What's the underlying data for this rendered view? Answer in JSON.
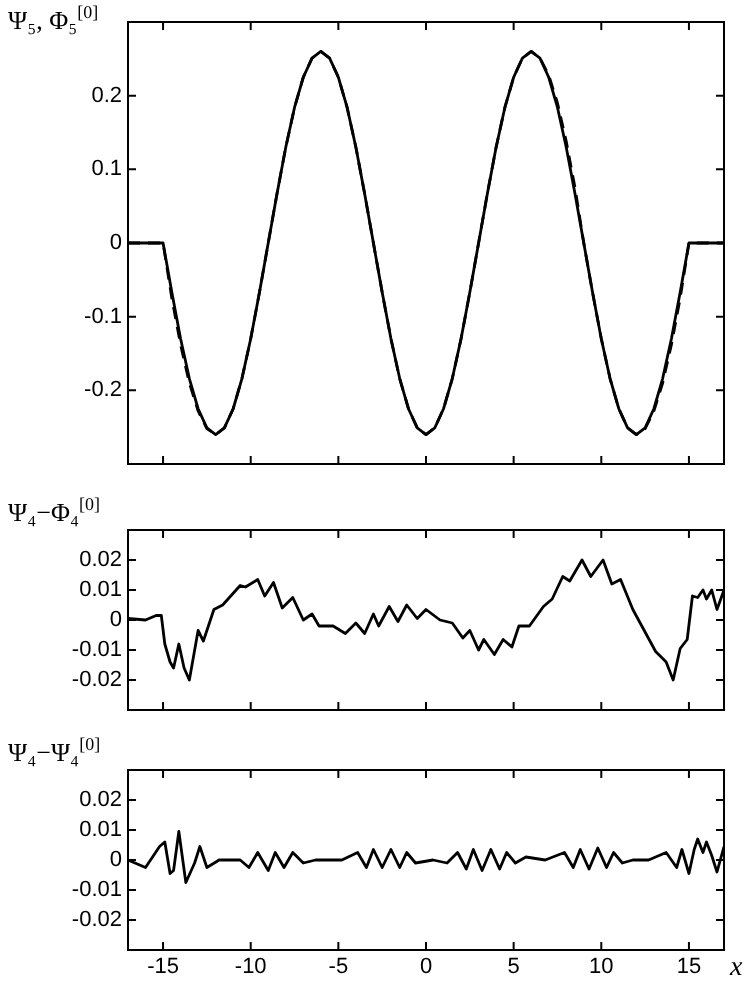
{
  "chart_data": [
    {
      "type": "line",
      "ylabel": "Ψ₅, Φ₅$^{[0]}$",
      "xlim": [
        -17,
        17
      ],
      "xticks": [
        -15,
        -10,
        -5,
        0,
        5,
        10,
        15
      ],
      "ylim": [
        -0.3,
        0.3
      ],
      "yticks": [
        -0.2,
        -0.1,
        0,
        0.1,
        0.2
      ],
      "tick_labels": "y",
      "grid": false,
      "legend": false,
      "marker": "none",
      "series": [
        {
          "color": "#000000",
          "line_style": "solid",
          "x": [
            -17,
            -16,
            -15,
            -14.5,
            -14,
            -13.5,
            -13,
            -12.5,
            -12,
            -11.5,
            -11,
            -10.5,
            -10,
            -9.5,
            -9,
            -8.5,
            -8,
            -7.5,
            -7,
            -6.5,
            -6,
            -5.5,
            -5,
            -4.5,
            -4,
            -3.5,
            -3,
            -2.5,
            -2,
            -1.5,
            -1,
            -0.5,
            0,
            0.5,
            1,
            1.5,
            2,
            2.5,
            3,
            3.5,
            4,
            4.5,
            5,
            5.5,
            6,
            6.5,
            7,
            7.5,
            8,
            8.5,
            9,
            9.5,
            10,
            10.5,
            11,
            11.5,
            12,
            12.5,
            13,
            13.5,
            14,
            14.5,
            15,
            16,
            17
          ],
          "values": [
            0,
            0,
            0,
            -0.067,
            -0.13,
            -0.184,
            -0.225,
            -0.251,
            -0.26,
            -0.251,
            -0.225,
            -0.184,
            -0.13,
            -0.067,
            0,
            0.067,
            0.13,
            0.184,
            0.225,
            0.251,
            0.26,
            0.251,
            0.225,
            0.184,
            0.13,
            0.067,
            0,
            -0.067,
            -0.13,
            -0.184,
            -0.225,
            -0.251,
            -0.26,
            -0.251,
            -0.225,
            -0.184,
            -0.13,
            -0.067,
            0,
            0.067,
            0.13,
            0.184,
            0.225,
            0.251,
            0.26,
            0.251,
            0.225,
            0.184,
            0.13,
            0.067,
            0,
            -0.067,
            -0.13,
            -0.184,
            -0.225,
            -0.251,
            -0.26,
            -0.251,
            -0.225,
            -0.184,
            -0.13,
            -0.067,
            0,
            0,
            0
          ]
        },
        {
          "color": "#000000",
          "line_style": "dashed",
          "x": [
            -17,
            -16,
            -15,
            -14.5,
            -14,
            -13.5,
            -13,
            -12.5,
            -12,
            -11.5,
            -11,
            -10.5,
            -10,
            -9.5,
            -9,
            -8.5,
            -8,
            -7.5,
            -7,
            -6.5,
            -6,
            -5.5,
            -5,
            -4.5,
            -4,
            -3.5,
            -3,
            -2.5,
            -2,
            -1.5,
            -1,
            -0.5,
            0,
            0.5,
            1,
            1.5,
            2,
            2.5,
            3,
            3.5,
            4,
            4.5,
            5,
            5.5,
            6,
            6.5,
            7,
            7.5,
            8,
            8.5,
            9,
            9.5,
            10,
            10.5,
            11,
            11.5,
            12,
            12.5,
            13,
            13.5,
            14,
            14.5,
            15,
            16,
            17
          ],
          "values": [
            0,
            0,
            0,
            -0.075,
            -0.138,
            -0.19,
            -0.228,
            -0.252,
            -0.26,
            -0.251,
            -0.225,
            -0.184,
            -0.13,
            -0.067,
            0,
            0.067,
            0.13,
            0.184,
            0.225,
            0.251,
            0.26,
            0.251,
            0.225,
            0.184,
            0.13,
            0.067,
            0,
            -0.067,
            -0.13,
            -0.184,
            -0.225,
            -0.251,
            -0.26,
            -0.251,
            -0.225,
            -0.184,
            -0.13,
            -0.067,
            0,
            0.067,
            0.13,
            0.184,
            0.225,
            0.251,
            0.26,
            0.251,
            0.228,
            0.19,
            0.138,
            0.075,
            0,
            -0.067,
            -0.13,
            -0.184,
            -0.225,
            -0.251,
            -0.26,
            -0.252,
            -0.228,
            -0.19,
            -0.138,
            -0.075,
            0,
            0,
            0
          ]
        }
      ]
    },
    {
      "type": "line",
      "ylabel": "Ψ₄−Φ₄$^{[0]}$",
      "xlim": [
        -17,
        17
      ],
      "xticks": [
        -15,
        -10,
        -5,
        0,
        5,
        10,
        15
      ],
      "ylim": [
        -0.03,
        0.03
      ],
      "yticks": [
        -0.02,
        -0.01,
        0,
        0.01,
        0.02
      ],
      "tick_labels": "y",
      "grid": false,
      "legend": false,
      "marker": "none",
      "color": "#000000",
      "x": [
        -17,
        -16,
        -15.4,
        -15.1,
        -14.9,
        -14.6,
        -14.4,
        -14.1,
        -13.8,
        -13.5,
        -13,
        -12.7,
        -12.1,
        -11.6,
        -10.6,
        -10.3,
        -9.6,
        -9.2,
        -8.7,
        -8.2,
        -7.6,
        -7,
        -6.5,
        -6.1,
        -5.3,
        -4.6,
        -4,
        -3.5,
        -3,
        -2.7,
        -2.1,
        -1.6,
        -1.1,
        -0.5,
        0,
        0.8,
        1.5,
        2.1,
        2.5,
        3,
        3.3,
        3.9,
        4.4,
        4.9,
        5.3,
        5.9,
        6.7,
        7.2,
        7.8,
        8.2,
        8.9,
        9.4,
        10.1,
        10.6,
        11.1,
        11.8,
        13.1,
        13.7,
        14.1,
        14.5,
        14.9,
        15.2,
        15.5,
        15.8,
        16,
        16.3,
        16.6,
        17
      ],
      "values": [
        0.0005,
        0,
        0.0015,
        0.0015,
        -0.008,
        -0.014,
        -0.016,
        -0.008,
        -0.016,
        -0.02,
        -0.0035,
        -0.007,
        0.0035,
        0.005,
        0.0115,
        0.011,
        0.0135,
        0.008,
        0.0125,
        0.004,
        0.0075,
        0,
        0.002,
        -0.002,
        -0.002,
        -0.0045,
        -0.001,
        -0.0045,
        0.002,
        -0.002,
        0.0045,
        -0.0005,
        0.005,
        0.0005,
        0.0035,
        0,
        -0.001,
        -0.006,
        -0.0035,
        -0.01,
        -0.0065,
        -0.0115,
        -0.0065,
        -0.009,
        -0.002,
        -0.002,
        0.0045,
        0.007,
        0.0145,
        0.013,
        0.02,
        0.0145,
        0.02,
        0.012,
        0.0135,
        0.0035,
        -0.0105,
        -0.014,
        -0.02,
        -0.0095,
        -0.0065,
        0.008,
        0.0075,
        0.01,
        0.007,
        0.01,
        0.0035,
        0.01
      ]
    },
    {
      "type": "line",
      "ylabel": "Ψ₄−Ψ₄$^{[0]}$",
      "xlabel": "x",
      "xlim": [
        -17,
        17
      ],
      "xticks": [
        -15,
        -10,
        -5,
        0,
        5,
        10,
        15
      ],
      "ylim": [
        -0.03,
        0.03
      ],
      "yticks": [
        -0.02,
        -0.01,
        0,
        0.01,
        0.02
      ],
      "grid": false,
      "legend": false,
      "marker": "none",
      "color": "#000000",
      "x": [
        -17,
        -16,
        -15.2,
        -14.9,
        -14.6,
        -14.4,
        -14.1,
        -13.7,
        -13.2,
        -12.9,
        -12.5,
        -11.8,
        -10.6,
        -10.1,
        -9.6,
        -9,
        -8.6,
        -8.1,
        -7.6,
        -7,
        -6.3,
        -4.8,
        -3.9,
        -3.4,
        -3,
        -2.5,
        -2,
        -1.5,
        -1.1,
        -0.6,
        0.4,
        1.2,
        1.8,
        2.3,
        2.7,
        3.2,
        3.7,
        4.2,
        4.6,
        5.1,
        5.7,
        6.8,
        7.9,
        8.4,
        8.8,
        9.3,
        9.8,
        10.3,
        10.7,
        11.2,
        11.8,
        12.7,
        13.7,
        14.3,
        14.6,
        15,
        15.3,
        15.5,
        15.8,
        16,
        16.3,
        16.6,
        17
      ],
      "values": [
        0,
        -0.0025,
        0.0045,
        0.006,
        -0.0045,
        -0.0035,
        0.0095,
        -0.0075,
        -0.001,
        0.0045,
        -0.0025,
        0,
        0,
        -0.0025,
        0.0025,
        -0.0035,
        0.0025,
        -0.0025,
        0.0025,
        -0.001,
        0,
        0,
        0.0025,
        -0.0025,
        0.0035,
        -0.0025,
        0.0035,
        -0.0025,
        0.0025,
        -0.001,
        0,
        -0.001,
        0.0025,
        -0.003,
        0.0035,
        -0.0035,
        0.0035,
        -0.003,
        0.0025,
        -0.001,
        0.001,
        0,
        0.0025,
        -0.0025,
        0.0035,
        -0.003,
        0.004,
        -0.0025,
        0.0025,
        -0.001,
        0,
        0,
        0.0025,
        -0.0025,
        0.0035,
        -0.0045,
        0.0035,
        0.007,
        0.0025,
        0.006,
        0.0015,
        -0.004,
        0.0045
      ]
    }
  ]
}
